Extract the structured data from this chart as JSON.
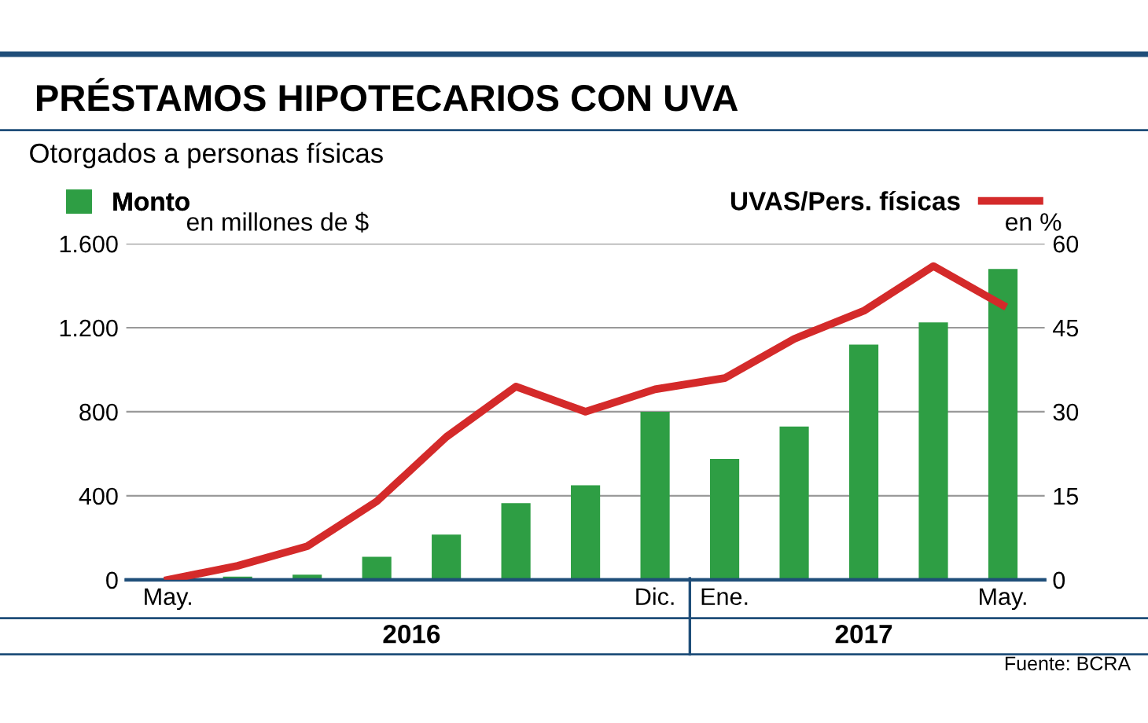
{
  "chart_data": {
    "type": "bar",
    "title": "PRÉSTAMOS HIPOTECARIOS CON UVA",
    "subtitle": "Otorgados a personas físicas",
    "ylabel": "en millones de $",
    "y2label": "en %",
    "categories": [
      "May.",
      null,
      null,
      null,
      null,
      null,
      null,
      "Dic.",
      "Ene.",
      null,
      null,
      null,
      "May."
    ],
    "series": [
      {
        "name": "Monto",
        "color": "#2e9e44",
        "values": [
          0,
          15,
          25,
          110,
          215,
          365,
          450,
          800,
          575,
          730,
          1120,
          1225,
          1480
        ]
      },
      {
        "name": "UVAS/Pers. físicas",
        "type": "line",
        "axis": "y2",
        "color": "#d42a2a",
        "values": [
          0,
          2.5,
          6,
          14,
          25.5,
          34.5,
          30,
          34,
          36,
          43,
          48,
          56,
          49
        ]
      }
    ],
    "ylim": [
      0,
      1600
    ],
    "yticks": [
      0,
      400,
      800,
      {
        "value": 1200,
        "label": "1.200"
      },
      {
        "value": 1600,
        "label": "1.600"
      }
    ],
    "y2lim": [
      0,
      60
    ],
    "y2ticks": [
      0,
      15,
      30,
      45,
      60
    ],
    "grid": "y",
    "legend": "top",
    "marker": "none",
    "line_style": "solid",
    "annotations": [
      "2016",
      "2017",
      "Fuente: BCRA"
    ]
  }
}
